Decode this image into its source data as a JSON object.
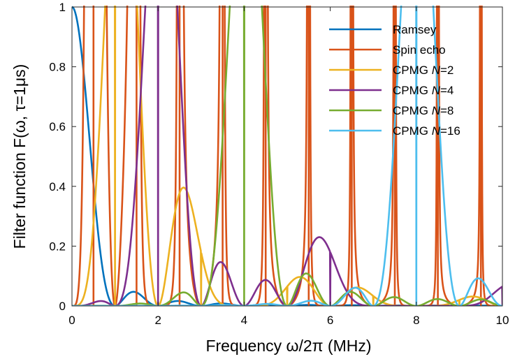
{
  "chart_data": {
    "type": "line",
    "title": "",
    "xlabel": "Frequency ω/2π  (MHz)",
    "ylabel": "Filter function F(ω, τ=1μs)",
    "xlim": [
      0,
      10
    ],
    "ylim": [
      0,
      1
    ],
    "x_ticks": [
      0,
      2,
      4,
      6,
      8,
      10
    ],
    "y_ticks": [
      0,
      0.2,
      0.4,
      0.6,
      0.8,
      1
    ],
    "x_tick_labels": [
      "0",
      "2",
      "4",
      "6",
      "8",
      "10"
    ],
    "y_tick_labels": [
      "0",
      "0.2",
      "0.4",
      "0.6",
      "0.8",
      "1"
    ],
    "grid": false,
    "legend_position": "top-right",
    "x_formula": "frequency in MHz, omega*tau/2pi with tau = 1 us",
    "series": [
      {
        "legend_label": "Ramsey",
        "pulses": 0,
        "color": "#0072BD"
      },
      {
        "legend_label": "Spin echo",
        "pulses": 1,
        "color": "#D95319"
      },
      {
        "legend_label": "CPMG",
        "legend_italic": "N",
        "legend_suffix": "=2",
        "pulses": 2,
        "color": "#EDB120"
      },
      {
        "legend_label": "CPMG",
        "legend_italic": "N",
        "legend_suffix": "=4",
        "pulses": 4,
        "color": "#7E2F8E"
      },
      {
        "legend_label": "CPMG",
        "legend_italic": "N",
        "legend_suffix": "=8",
        "pulses": 8,
        "color": "#77AC30"
      },
      {
        "legend_label": "CPMG",
        "legend_italic": "N",
        "legend_suffix": "=16",
        "pulses": 16,
        "color": "#4DBEEE"
      }
    ]
  }
}
